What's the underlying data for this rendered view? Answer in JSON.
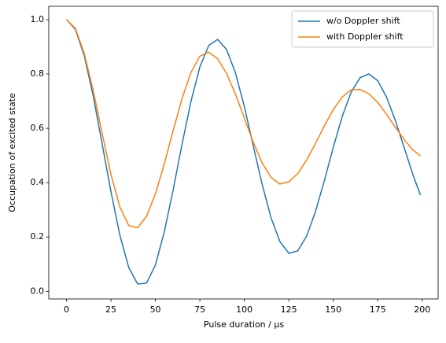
{
  "chart_data": {
    "type": "line",
    "x_label": "Pulse duration / µs",
    "y_label": "Occupation of excited state",
    "x": [
      0,
      5,
      10,
      15,
      20,
      25,
      30,
      35,
      40,
      45,
      50,
      55,
      60,
      65,
      70,
      75,
      80,
      85,
      90,
      95,
      100,
      105,
      110,
      115,
      120,
      125,
      130,
      135,
      140,
      145,
      150,
      155,
      160,
      165,
      170,
      175,
      180,
      185,
      190,
      195,
      199
    ],
    "series": [
      {
        "name": "w/o Doppler shift",
        "color": "#1f77b4",
        "values": [
          1.0,
          0.964,
          0.867,
          0.72,
          0.545,
          0.367,
          0.207,
          0.088,
          0.027,
          0.03,
          0.097,
          0.219,
          0.374,
          0.542,
          0.699,
          0.826,
          0.905,
          0.927,
          0.89,
          0.804,
          0.68,
          0.536,
          0.394,
          0.271,
          0.183,
          0.14,
          0.149,
          0.203,
          0.294,
          0.408,
          0.53,
          0.643,
          0.732,
          0.786,
          0.8,
          0.775,
          0.714,
          0.627,
          0.526,
          0.425,
          0.354
        ]
      },
      {
        "name": "with Doppler shift",
        "color": "#ff7f0e",
        "values": [
          1.0,
          0.968,
          0.875,
          0.74,
          0.583,
          0.431,
          0.311,
          0.242,
          0.234,
          0.276,
          0.358,
          0.469,
          0.592,
          0.71,
          0.806,
          0.865,
          0.88,
          0.856,
          0.802,
          0.726,
          0.638,
          0.549,
          0.473,
          0.419,
          0.395,
          0.403,
          0.433,
          0.483,
          0.544,
          0.609,
          0.669,
          0.715,
          0.741,
          0.743,
          0.727,
          0.695,
          0.651,
          0.603,
          0.557,
          0.519,
          0.499
        ]
      }
    ],
    "xlim": [
      -9.95,
      208.95
    ],
    "ylim": [
      -0.028,
      1.049
    ],
    "xticks": [
      0,
      25,
      50,
      75,
      100,
      125,
      150,
      175,
      200
    ],
    "yticks": [
      {
        "value": 0,
        "label": "0.0"
      },
      {
        "value": 0.2,
        "label": "0.2"
      },
      {
        "value": 0.4,
        "label": "0.4"
      },
      {
        "value": 0.6,
        "label": "0.6"
      },
      {
        "value": 0.8,
        "label": "0.8"
      },
      {
        "value": 1,
        "label": "1.0"
      }
    ],
    "legend": "upper right"
  }
}
